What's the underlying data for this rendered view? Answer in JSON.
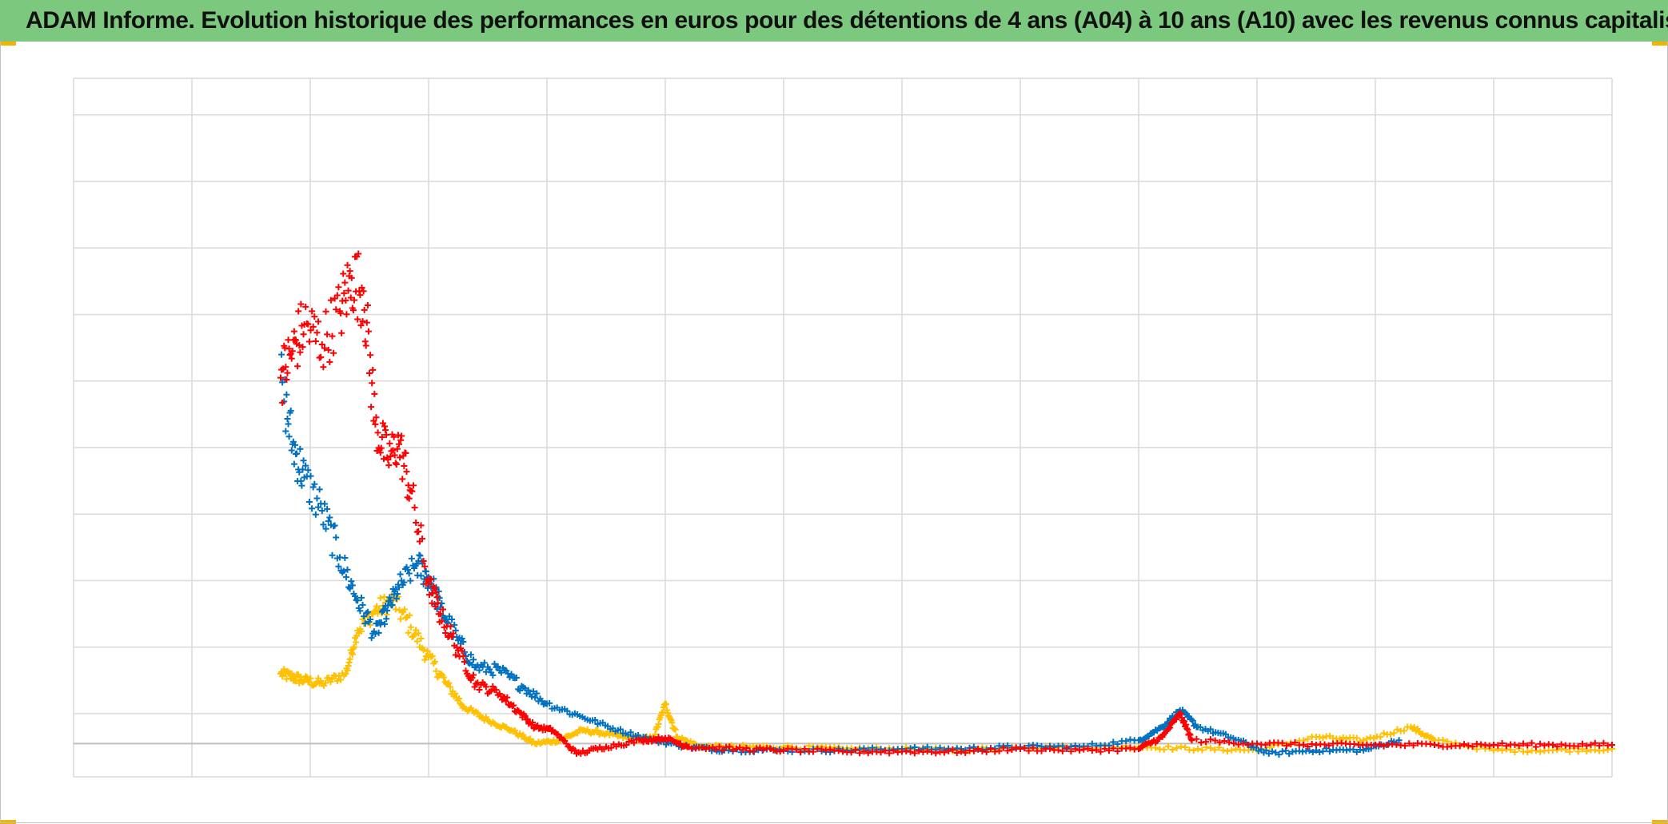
{
  "title": "ADAM Informe. Evolution historique des performances en euros pour des détentions de 4 ans (A04) à 10 ans (A10) avec les revenus connus capitalisés",
  "colors": {
    "title_background": "#7dc87f",
    "grid": "#d9d9d9",
    "zero_line": "#bfbfbf",
    "corner_accent": "#f2b400"
  },
  "chart_data": {
    "type": "scatter",
    "marker": "plus",
    "grid": true,
    "legend": "none",
    "axis_labels_visible": false,
    "xlim": [
      0,
      13
    ],
    "ylim": [
      -0.5,
      10
    ],
    "x_gridlines": [
      0,
      1,
      2,
      3,
      4,
      5,
      6,
      7,
      8,
      9,
      10,
      11,
      12,
      13
    ],
    "y_gridlines": [
      0,
      0.45,
      1.45,
      2.45,
      3.45,
      4.45,
      5.45,
      6.45,
      7.45,
      8.45,
      9.45
    ],
    "zero_value": 0,
    "series": [
      {
        "color": "#ffc000",
        "values": [
          [
            1.75,
            1.05
          ],
          [
            1.85,
            1.0
          ],
          [
            1.95,
            0.95
          ],
          [
            2.1,
            0.9
          ],
          [
            2.3,
            1.05
          ],
          [
            2.4,
            1.7
          ],
          [
            2.55,
            2.0
          ],
          [
            2.7,
            2.15
          ],
          [
            2.85,
            1.75
          ],
          [
            3.0,
            1.3
          ],
          [
            3.15,
            0.9
          ],
          [
            3.3,
            0.55
          ],
          [
            3.5,
            0.35
          ],
          [
            3.7,
            0.2
          ],
          [
            3.9,
            0.0
          ],
          [
            4.1,
            0.05
          ],
          [
            4.3,
            0.2
          ],
          [
            4.5,
            0.15
          ],
          [
            4.7,
            0.08
          ],
          [
            4.9,
            0.08
          ],
          [
            5.0,
            0.6
          ],
          [
            5.1,
            0.1
          ],
          [
            5.3,
            -0.05
          ],
          [
            5.6,
            -0.05
          ],
          [
            6.0,
            -0.05
          ],
          [
            6.5,
            -0.08
          ],
          [
            7.0,
            -0.08
          ],
          [
            7.5,
            -0.1
          ],
          [
            8.0,
            -0.05
          ],
          [
            8.5,
            -0.05
          ],
          [
            9.0,
            -0.05
          ],
          [
            9.5,
            -0.08
          ],
          [
            10.0,
            -0.1
          ],
          [
            10.5,
            0.1
          ],
          [
            10.9,
            0.05
          ],
          [
            11.3,
            0.25
          ],
          [
            11.5,
            0.05
          ],
          [
            12.0,
            -0.1
          ],
          [
            12.5,
            -0.1
          ],
          [
            13.0,
            -0.08
          ]
        ]
      },
      {
        "color": "#0070c0",
        "values": [
          [
            1.75,
            5.5
          ],
          [
            1.85,
            4.5
          ],
          [
            1.95,
            4.0
          ],
          [
            2.1,
            3.5
          ],
          [
            2.25,
            2.8
          ],
          [
            2.4,
            2.15
          ],
          [
            2.55,
            1.65
          ],
          [
            2.65,
            2.0
          ],
          [
            2.75,
            2.35
          ],
          [
            2.9,
            2.7
          ],
          [
            3.0,
            2.5
          ],
          [
            3.1,
            2.05
          ],
          [
            3.25,
            1.55
          ],
          [
            3.4,
            1.15
          ],
          [
            3.6,
            1.1
          ],
          [
            3.8,
            0.85
          ],
          [
            4.0,
            0.6
          ],
          [
            4.3,
            0.4
          ],
          [
            4.6,
            0.2
          ],
          [
            4.9,
            0.05
          ],
          [
            5.2,
            -0.05
          ],
          [
            5.5,
            -0.1
          ],
          [
            6.0,
            -0.1
          ],
          [
            6.5,
            -0.1
          ],
          [
            7.0,
            -0.08
          ],
          [
            7.5,
            -0.08
          ],
          [
            8.0,
            -0.05
          ],
          [
            8.5,
            -0.05
          ],
          [
            9.0,
            0.05
          ],
          [
            9.2,
            0.25
          ],
          [
            9.35,
            0.5
          ],
          [
            9.5,
            0.25
          ],
          [
            9.8,
            0.08
          ],
          [
            10.1,
            -0.15
          ],
          [
            10.5,
            -0.1
          ],
          [
            10.9,
            -0.1
          ],
          [
            11.2,
            0.05
          ]
        ]
      },
      {
        "color": "#ff0000",
        "values": [
          [
            1.75,
            5.5
          ],
          [
            1.85,
            5.9
          ],
          [
            1.95,
            6.3
          ],
          [
            2.1,
            6.0
          ],
          [
            2.25,
            6.5
          ],
          [
            2.35,
            7.0
          ],
          [
            2.45,
            6.8
          ],
          [
            2.55,
            4.8
          ],
          [
            2.65,
            4.3
          ],
          [
            2.75,
            4.5
          ],
          [
            2.85,
            3.8
          ],
          [
            3.0,
            2.4
          ],
          [
            3.1,
            1.95
          ],
          [
            3.25,
            1.4
          ],
          [
            3.4,
            0.9
          ],
          [
            3.6,
            0.75
          ],
          [
            3.75,
            0.5
          ],
          [
            3.9,
            0.25
          ],
          [
            4.05,
            0.2
          ],
          [
            4.25,
            -0.15
          ],
          [
            4.5,
            -0.05
          ],
          [
            4.8,
            0.05
          ],
          [
            5.0,
            0.08
          ],
          [
            5.2,
            -0.05
          ],
          [
            5.6,
            -0.08
          ],
          [
            6.0,
            -0.1
          ],
          [
            6.5,
            -0.12
          ],
          [
            7.0,
            -0.12
          ],
          [
            7.5,
            -0.12
          ],
          [
            8.0,
            -0.08
          ],
          [
            8.5,
            -0.1
          ],
          [
            9.0,
            -0.08
          ],
          [
            9.2,
            0.1
          ],
          [
            9.35,
            0.45
          ],
          [
            9.45,
            0.05
          ],
          [
            10.0,
            0.0
          ],
          [
            10.5,
            -0.02
          ],
          [
            11.0,
            -0.02
          ],
          [
            11.5,
            -0.02
          ],
          [
            12.0,
            -0.02
          ],
          [
            12.5,
            -0.02
          ],
          [
            13.0,
            -0.02
          ]
        ]
      }
    ]
  }
}
